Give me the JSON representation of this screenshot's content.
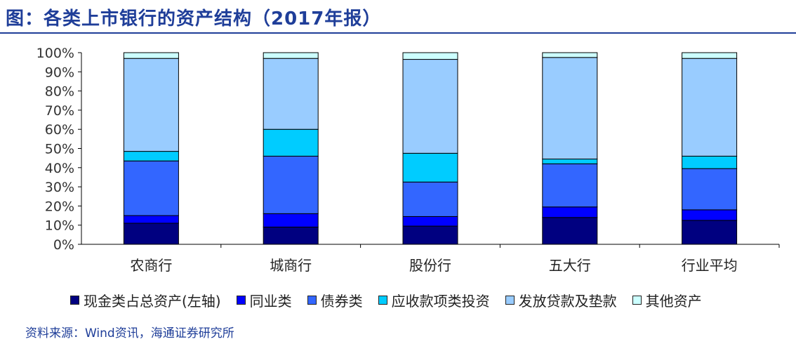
{
  "title": "图：各类上市银行的资产结构（2017年报）",
  "source": "资料来源：Wind资讯，海通证券研究所",
  "chart_data": {
    "type": "bar",
    "stacked": true,
    "categories": [
      "农商行",
      "城商行",
      "股份行",
      "五大行",
      "行业平均"
    ],
    "y_tick_labels": [
      "0%",
      "10%",
      "20%",
      "30%",
      "40%",
      "50%",
      "60%",
      "70%",
      "80%",
      "90%",
      "100%"
    ],
    "ylim": [
      0,
      100
    ],
    "grid": false,
    "legend_position": "bottom",
    "series": [
      {
        "name": "现金类占总资产(左轴)",
        "color": "#000080",
        "values": [
          11,
          9,
          9.5,
          14,
          12.5
        ]
      },
      {
        "name": "同业类",
        "color": "#0000FF",
        "values": [
          4,
          7,
          5,
          5.5,
          5.5
        ]
      },
      {
        "name": "债券类",
        "color": "#3366FF",
        "values": [
          28.5,
          30,
          18,
          22.5,
          21.5
        ]
      },
      {
        "name": "应收款项类投资",
        "color": "#00CCFF",
        "values": [
          5,
          14,
          15,
          2.5,
          6.5
        ]
      },
      {
        "name": "发放贷款及垫款",
        "color": "#99CCFF",
        "values": [
          48.5,
          37,
          49,
          53,
          51
        ]
      },
      {
        "name": "其他资产",
        "color": "#CCFFFF",
        "values": [
          3,
          3,
          3.5,
          2.5,
          3
        ]
      }
    ]
  }
}
